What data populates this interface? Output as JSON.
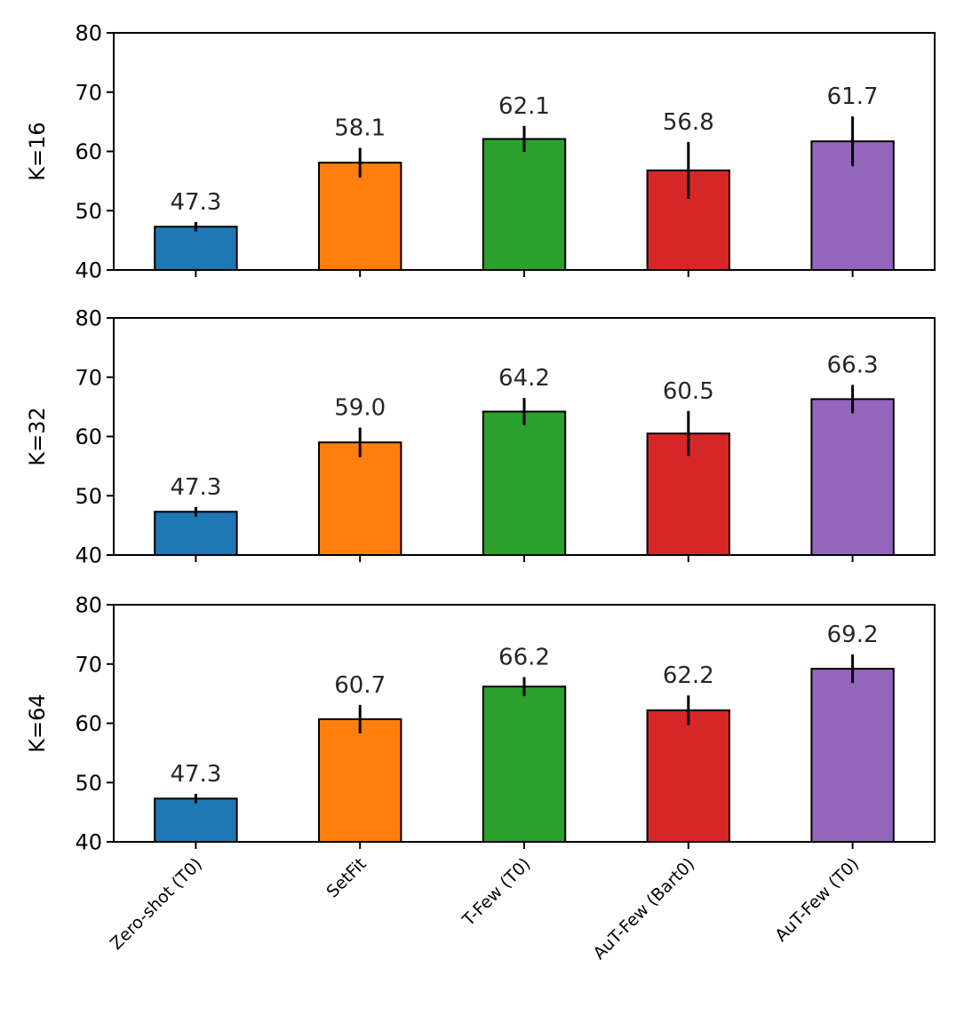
{
  "chart_data": {
    "type": "bar",
    "categories": [
      "Zero-shot (T0)",
      "SetFit",
      "T-Few (T0)",
      "AuT-Few (Bart0)",
      "AuT-Few (T0)"
    ],
    "colors": [
      "#1f77b4",
      "#ff7f0e",
      "#2ca02c",
      "#d62728",
      "#9467bd"
    ],
    "ylim": [
      40,
      80
    ],
    "yticks": [
      40,
      50,
      60,
      70,
      80
    ],
    "panels": [
      {
        "ylabel": "K=16",
        "values": [
          47.3,
          58.1,
          62.1,
          56.8,
          61.7
        ],
        "labels": [
          "47.3",
          "58.1",
          "62.1",
          "56.8",
          "61.7"
        ],
        "errors": [
          0.8,
          2.5,
          2.2,
          4.8,
          4.2
        ]
      },
      {
        "ylabel": "K=32",
        "values": [
          47.3,
          59.0,
          64.2,
          60.5,
          66.3
        ],
        "labels": [
          "47.3",
          "59.0",
          "64.2",
          "60.5",
          "66.3"
        ],
        "errors": [
          0.8,
          2.5,
          2.3,
          3.8,
          2.4
        ]
      },
      {
        "ylabel": "K=64",
        "values": [
          47.3,
          60.7,
          66.2,
          62.2,
          69.2
        ],
        "labels": [
          "47.3",
          "60.7",
          "66.2",
          "62.2",
          "69.2"
        ],
        "errors": [
          0.8,
          2.4,
          1.6,
          2.5,
          2.4
        ]
      }
    ]
  }
}
